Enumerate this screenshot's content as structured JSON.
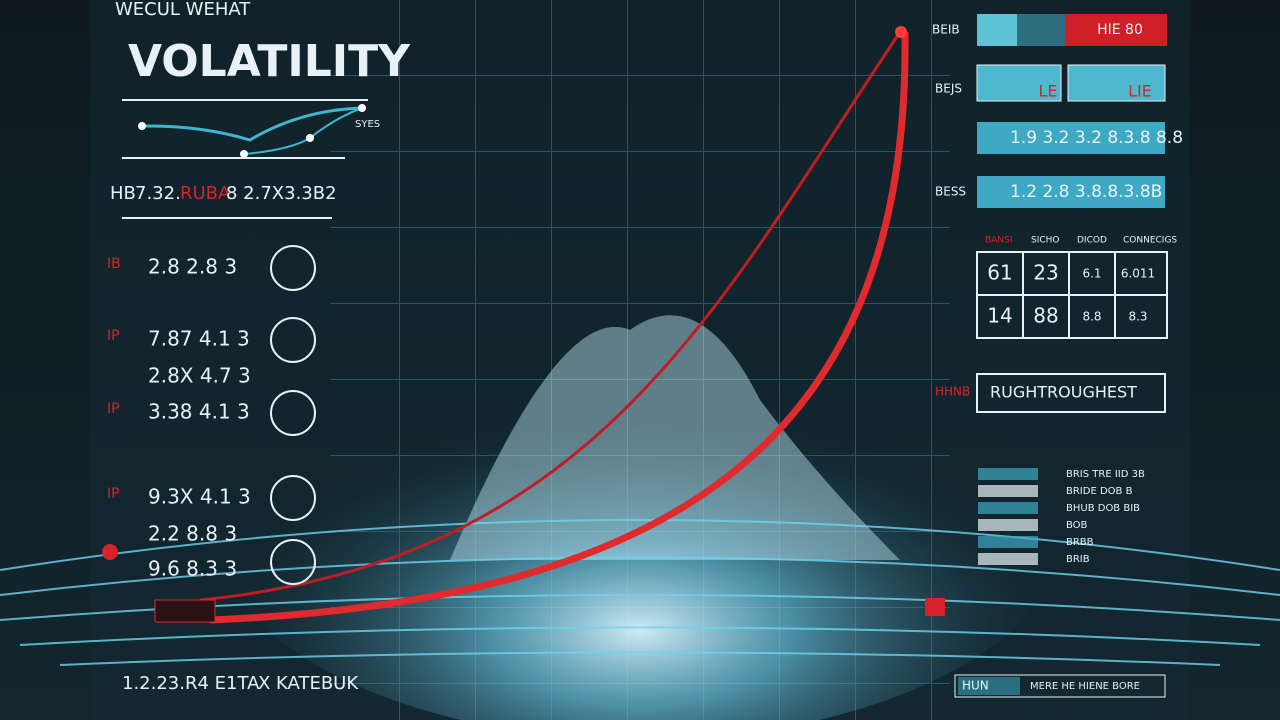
{
  "header": {
    "kicker": "WECUL WEHAT",
    "title": "VOLATILITY",
    "legend_label": "SYES"
  },
  "stats_line": [
    "HB",
    "7.32.",
    "RUBA",
    "8 2.7X3.3B2"
  ],
  "left_rows": [
    {
      "marker": "IB",
      "value": "2.8 2.8 3"
    },
    {
      "marker": "IP",
      "value": "7.87 4.1 3"
    },
    {
      "marker": "IP",
      "value": "3.38 4.1 3"
    },
    {
      "marker": "IP",
      "value": "9.3X 4.1 3"
    }
  ],
  "left_extra": [
    "2.8X 4.7 3",
    "2.2 8.8 3",
    "9.6 8.3 3"
  ],
  "footer_left": [
    "1.2.23.R4 E1TA",
    "X KATEBUK"
  ],
  "right_panel": {
    "top_label": "BEIB",
    "top_value": "HIE 80",
    "mid_label": "BEJS",
    "small_boxes": [
      "LE",
      "LIE"
    ],
    "bars": [
      "1.9 3.2 3.2 8.3.8 8.8",
      "1.2 2.8 3.8.8.3.8B"
    ],
    "bar_label": "BESS",
    "table": {
      "header": [
        "BANSI",
        "SICHO",
        "DICOD",
        "CONNECIGS"
      ],
      "rows": [
        [
          "61",
          "23",
          "6.1",
          "6.011"
        ],
        [
          "14",
          "88",
          "8.8",
          "8.3"
        ]
      ]
    },
    "callout_label": "HHNB",
    "callout": "RUGHTROUGHEST",
    "list": [
      "BRIS TRE IID 3B",
      "BRIDE DOB B",
      "BHUB DOB BIB",
      "BOB",
      "BRBB",
      "BRIB"
    ],
    "footer": [
      "HUN",
      "MERE HE HIENE BORE"
    ]
  }
}
